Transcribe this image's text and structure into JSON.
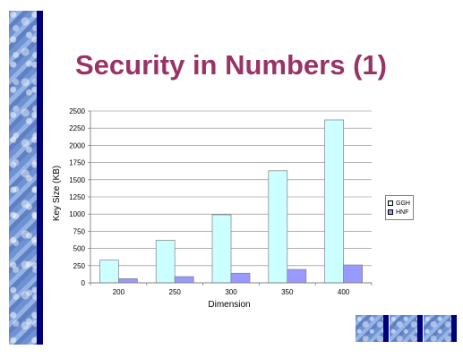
{
  "slide": {
    "title": "Security in Numbers (1)"
  },
  "colors": {
    "title": "#993366",
    "navy": "#00007A",
    "ggh": "#CCFFFF",
    "hnf": "#9999FF"
  },
  "chart_data": {
    "type": "bar",
    "categories": [
      "200",
      "250",
      "300",
      "350",
      "400"
    ],
    "series": [
      {
        "name": "GGH",
        "values": [
          330,
          620,
          990,
          1630,
          2370
        ],
        "color": "#CCFFFF"
      },
      {
        "name": "HNF",
        "values": [
          60,
          90,
          140,
          195,
          260
        ],
        "color": "#9999FF"
      }
    ],
    "y_ticks": [
      "0",
      "250",
      "500",
      "750",
      "1000",
      "1250",
      "1500",
      "1750",
      "2000",
      "2250",
      "2500"
    ],
    "xlabel": "Dimension",
    "ylabel": "Key Size (KB)",
    "ylim": [
      0,
      2500
    ],
    "grid": true,
    "legend_position": "right"
  }
}
